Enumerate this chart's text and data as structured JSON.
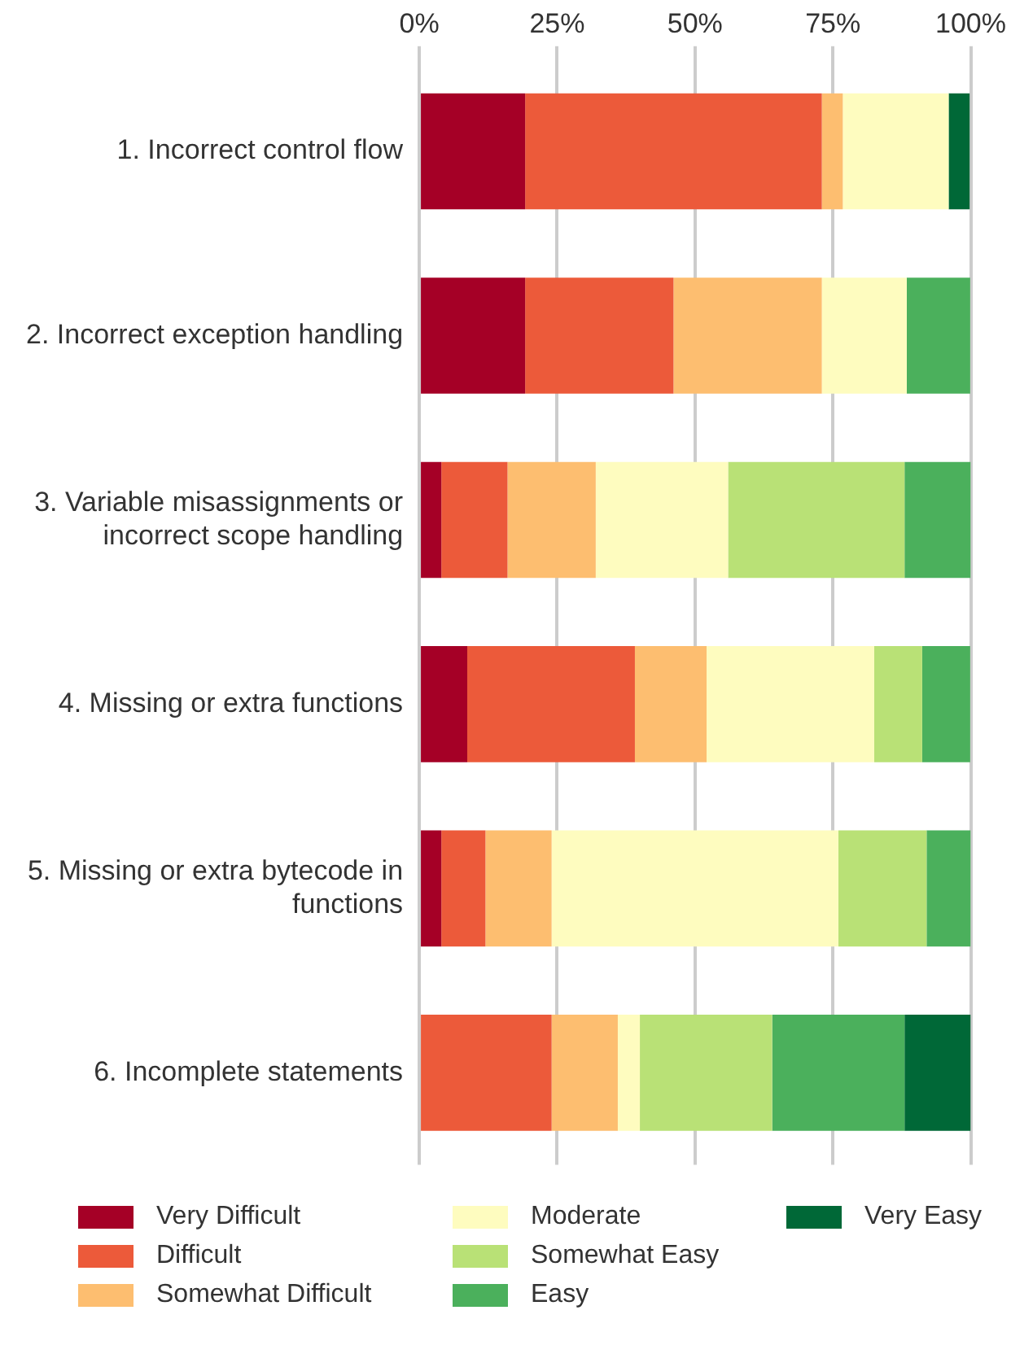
{
  "chart_data": {
    "type": "bar",
    "orientation": "horizontal",
    "stacked": true,
    "legend": "bottom",
    "grid": "x",
    "categories": [
      "1. Incorrect control flow",
      "2. Incorrect exception handling",
      "3. Variable misassignments or incorrect scope handling",
      "4. Missing or extra functions",
      "5. Missing or extra bytecode in functions",
      "6. Incomplete statements"
    ],
    "xlim": [
      0,
      100
    ],
    "xticks": [
      {
        "value": 0,
        "label": "0%"
      },
      {
        "value": 25,
        "label": "25%"
      },
      {
        "value": 50,
        "label": "50%"
      },
      {
        "value": 75,
        "label": "75%"
      },
      {
        "value": 100,
        "label": "100%"
      }
    ],
    "series": [
      {
        "name": "Very Difficult",
        "color": "#a50026",
        "values": [
          19.2,
          19.2,
          4,
          8.7,
          4,
          0
        ]
      },
      {
        "name": "Difficult",
        "color": "#ec5a3a",
        "values": [
          53.8,
          26.9,
          12,
          30.4,
          8,
          24
        ]
      },
      {
        "name": "Somewhat Difficult",
        "color": "#fdbe70",
        "values": [
          3.8,
          26.9,
          16,
          13,
          12,
          12
        ]
      },
      {
        "name": "Moderate",
        "color": "#fefcbf",
        "values": [
          19.2,
          15.4,
          24,
          30.4,
          52,
          4
        ]
      },
      {
        "name": "Somewhat Easy",
        "color": "#b9e176",
        "values": [
          0,
          0,
          32,
          8.7,
          16,
          24
        ]
      },
      {
        "name": "Easy",
        "color": "#4bb05c",
        "values": [
          0,
          11.5,
          12,
          8.7,
          8,
          24
        ]
      },
      {
        "name": "Very Easy",
        "color": "#006837",
        "values": [
          3.8,
          0,
          0,
          0,
          0,
          12
        ]
      }
    ]
  }
}
